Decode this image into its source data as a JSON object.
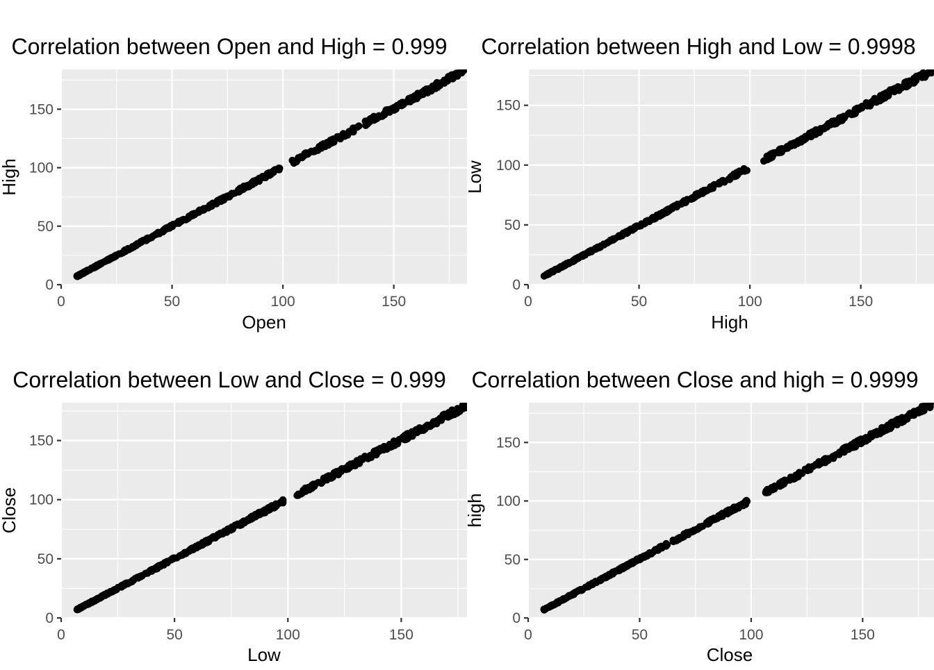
{
  "chart_data": [
    {
      "type": "scatter",
      "title": "Correlation between Open and High = 0.999",
      "xlabel": "Open",
      "ylabel": "High",
      "xlim": [
        0,
        183
      ],
      "ylim": [
        0,
        184
      ],
      "xticks": [
        0,
        50,
        100,
        150
      ],
      "yticks": [
        0,
        50,
        100,
        150
      ],
      "grid": true,
      "legend": "none",
      "point_color": "#000000",
      "range": {
        "x": [
          7,
          182
        ],
        "y": [
          7,
          183
        ]
      },
      "gap": [
        99,
        104
      ],
      "notes": "near-perfect linear relationship y ≈ x"
    },
    {
      "type": "scatter",
      "title": "Correlation between High and Low = 0.9998",
      "xlabel": "High",
      "ylabel": "Low",
      "xlim": [
        0,
        183
      ],
      "ylim": [
        0,
        180
      ],
      "xticks": [
        0,
        50,
        100,
        150
      ],
      "yticks": [
        0,
        50,
        100,
        150
      ],
      "grid": true,
      "legend": "none",
      "point_color": "#000000",
      "range": {
        "x": [
          7,
          182
        ],
        "y": [
          7,
          179
        ]
      },
      "gap": [
        99,
        106
      ],
      "notes": "near-perfect linear relationship y ≈ 0.98x"
    },
    {
      "type": "scatter",
      "title": "Correlation between Low and Close = 0.999",
      "xlabel": "Low",
      "ylabel": "Close",
      "xlim": [
        0,
        179
      ],
      "ylim": [
        0,
        182
      ],
      "xticks": [
        0,
        50,
        100,
        150
      ],
      "yticks": [
        0,
        50,
        100,
        150
      ],
      "grid": true,
      "legend": "none",
      "point_color": "#000000",
      "range": {
        "x": [
          7,
          179
        ],
        "y": [
          7,
          180
        ]
      },
      "gap": [
        98,
        104
      ],
      "notes": "near-perfect linear relationship y ≈ x"
    },
    {
      "type": "scatter",
      "title": "Correlation between Close and high = 0.9999",
      "xlabel": "Close",
      "ylabel": "high",
      "xlim": [
        0,
        182
      ],
      "ylim": [
        0,
        184
      ],
      "xticks": [
        0,
        50,
        100,
        150
      ],
      "yticks": [
        0,
        50,
        100,
        150
      ],
      "grid": true,
      "legend": "none",
      "point_color": "#000000",
      "range": {
        "x": [
          7,
          181
        ],
        "y": [
          7,
          183
        ]
      },
      "gap": [
        99,
        106
      ],
      "notes": "near-perfect linear relationship y ≈ x"
    }
  ]
}
